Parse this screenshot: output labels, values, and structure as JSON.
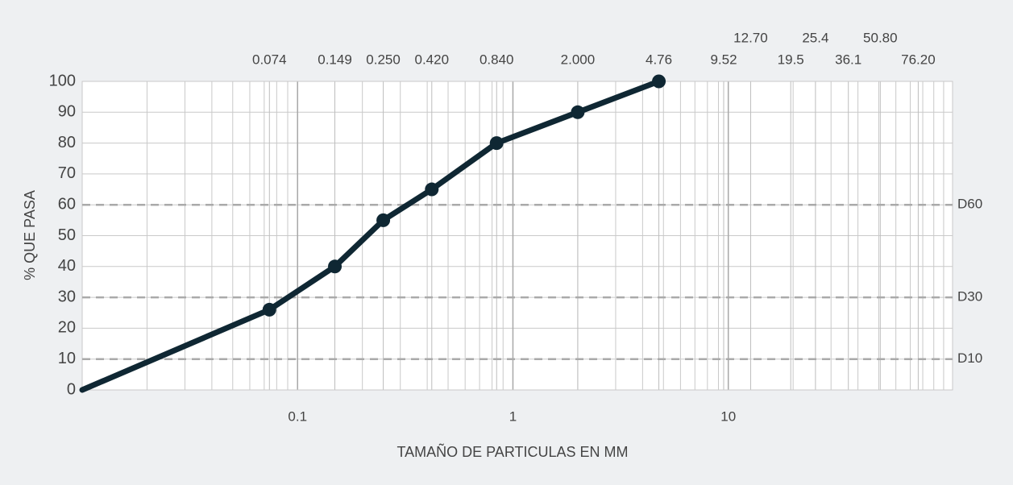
{
  "chart_data": {
    "type": "line",
    "xlabel": "TAMAÑO DE PARTICULAS EN MM",
    "ylabel": "% QUE PASA",
    "x": [
      0.01,
      0.074,
      0.149,
      0.25,
      0.42,
      0.84,
      2.0,
      4.76
    ],
    "values": [
      0,
      26,
      40,
      55,
      65,
      80,
      90,
      100
    ],
    "color": "#0f2733",
    "xscale": "log",
    "xlim": [
      0.01,
      110
    ],
    "ylim": [
      0,
      100
    ],
    "xticks": [
      0.1,
      1,
      10
    ],
    "yticks": [
      0,
      10,
      20,
      30,
      40,
      50,
      60,
      70,
      80,
      90,
      100
    ],
    "x2ticks": [
      {
        "value": 0.074,
        "label": "0.074"
      },
      {
        "value": 0.149,
        "label": "0.149"
      },
      {
        "value": 0.25,
        "label": "0.250"
      },
      {
        "value": 0.42,
        "label": "0.420"
      },
      {
        "value": 0.84,
        "label": "0.840"
      },
      {
        "value": 2.0,
        "label": "2.000"
      },
      {
        "value": 4.76,
        "label": "4.76"
      },
      {
        "value": 9.52,
        "label": "9.52"
      },
      {
        "value": 12.7,
        "label": "12.70"
      },
      {
        "value": 19.5,
        "label": "19.5"
      },
      {
        "value": 25.4,
        "label": "25.4"
      },
      {
        "value": 36.1,
        "label": "36.1"
      },
      {
        "value": 50.8,
        "label": "50.80"
      },
      {
        "value": 76.2,
        "label": "76.20"
      }
    ],
    "reference_lines": [
      {
        "label": "D60",
        "value": 60
      },
      {
        "label": "D30",
        "value": 30
      },
      {
        "label": "D10",
        "value": 10
      }
    ],
    "grid": true
  }
}
